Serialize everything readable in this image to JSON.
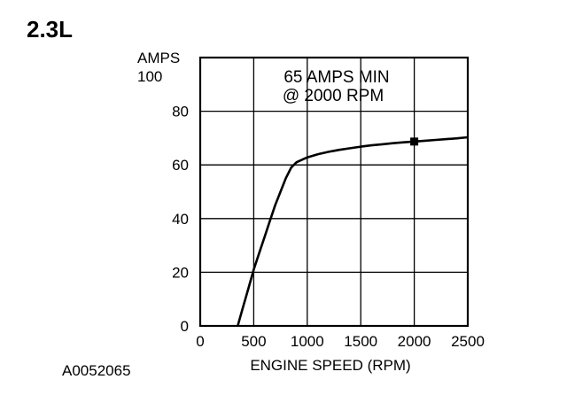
{
  "heading": "2.3L",
  "figure_code": "A0052065",
  "chart_data": {
    "type": "line",
    "xlabel": "ENGINE SPEED (RPM)",
    "ylabel": "AMPS",
    "annotation": [
      "65 AMPS MIN",
      "@ 2000 RPM"
    ],
    "xlim": [
      0,
      2500
    ],
    "ylim": [
      0,
      100
    ],
    "x_ticks": [
      0,
      500,
      1000,
      1500,
      2000,
      2500
    ],
    "y_ticks": [
      0,
      20,
      40,
      60,
      80,
      100
    ],
    "grid": true,
    "series": [
      {
        "x": [
          350,
          400,
          450,
          500,
          550,
          600,
          650,
          700,
          750,
          800,
          850,
          900,
          1000,
          1100,
          1200,
          1300,
          1400,
          1500,
          1600,
          1700,
          1800,
          1900,
          2000,
          2100,
          2200,
          2300,
          2400,
          2500
        ],
        "y": [
          0,
          7,
          14,
          21,
          27,
          33,
          39,
          45,
          50,
          55,
          59,
          61,
          62.8,
          64,
          64.9,
          65.6,
          66.2,
          66.8,
          67.3,
          67.7,
          68.1,
          68.4,
          68.7,
          69,
          69.3,
          69.6,
          69.9,
          70.3
        ]
      }
    ],
    "marker": {
      "x": 2000,
      "y": 68.7
    }
  }
}
